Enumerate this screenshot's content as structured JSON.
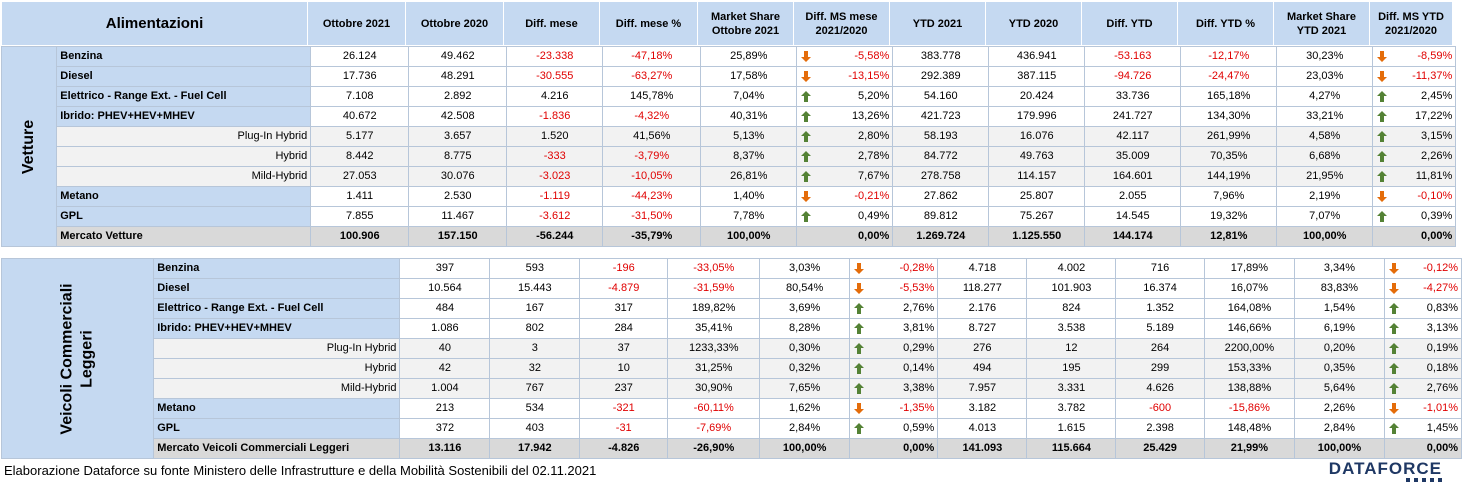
{
  "headers": [
    "Alimentazioni",
    "Ottobre 2021",
    "Ottobre 2020",
    "Diff. mese",
    "Diff. mese %",
    "Market Share Ottobre 2021",
    "Diff. MS mese 2021/2020",
    "YTD 2021",
    "YTD 2020",
    "Diff. YTD",
    "Diff. YTD %",
    "Market Share YTD 2021",
    "Diff. MS YTD 2021/2020"
  ],
  "sections": [
    {
      "group": "Vetture",
      "rows": [
        {
          "label": "Benzina",
          "type": "main",
          "values": [
            "26.124",
            "49.462",
            "-23.338",
            "-47,18%",
            "25,89%",
            "-5,58%",
            "383.778",
            "436.941",
            "-53.163",
            "-12,17%",
            "30,23%",
            "-8,59%"
          ]
        },
        {
          "label": "Diesel",
          "type": "main",
          "values": [
            "17.736",
            "48.291",
            "-30.555",
            "-63,27%",
            "17,58%",
            "-13,15%",
            "292.389",
            "387.115",
            "-94.726",
            "-24,47%",
            "23,03%",
            "-11,37%"
          ]
        },
        {
          "label": "Elettrico - Range Ext. - Fuel Cell",
          "type": "main",
          "values": [
            "7.108",
            "2.892",
            "4.216",
            "145,78%",
            "7,04%",
            "5,20%",
            "54.160",
            "20.424",
            "33.736",
            "165,18%",
            "4,27%",
            "2,45%"
          ]
        },
        {
          "label": "Ibrido: PHEV+HEV+MHEV",
          "type": "main",
          "values": [
            "40.672",
            "42.508",
            "-1.836",
            "-4,32%",
            "40,31%",
            "13,26%",
            "421.723",
            "179.996",
            "241.727",
            "134,30%",
            "33,21%",
            "17,22%"
          ]
        },
        {
          "label": "Plug-In Hybrid",
          "type": "sub",
          "values": [
            "5.177",
            "3.657",
            "1.520",
            "41,56%",
            "5,13%",
            "2,80%",
            "58.193",
            "16.076",
            "42.117",
            "261,99%",
            "4,58%",
            "3,15%"
          ]
        },
        {
          "label": "Hybrid",
          "type": "sub",
          "values": [
            "8.442",
            "8.775",
            "-333",
            "-3,79%",
            "8,37%",
            "2,78%",
            "84.772",
            "49.763",
            "35.009",
            "70,35%",
            "6,68%",
            "2,26%"
          ]
        },
        {
          "label": "Mild-Hybrid",
          "type": "sub",
          "values": [
            "27.053",
            "30.076",
            "-3.023",
            "-10,05%",
            "26,81%",
            "7,67%",
            "278.758",
            "114.157",
            "164.601",
            "144,19%",
            "21,95%",
            "11,81%"
          ]
        },
        {
          "label": "Metano",
          "type": "main",
          "values": [
            "1.411",
            "2.530",
            "-1.119",
            "-44,23%",
            "1,40%",
            "-0,21%",
            "27.862",
            "25.807",
            "2.055",
            "7,96%",
            "2,19%",
            "-0,10%"
          ]
        },
        {
          "label": "GPL",
          "type": "main",
          "values": [
            "7.855",
            "11.467",
            "-3.612",
            "-31,50%",
            "7,78%",
            "0,49%",
            "89.812",
            "75.267",
            "14.545",
            "19,32%",
            "7,07%",
            "0,39%"
          ]
        },
        {
          "label": "Mercato Vetture",
          "type": "total",
          "values": [
            "100.906",
            "157.150",
            "-56.244",
            "-35,79%",
            "100,00%",
            "0,00%",
            "1.269.724",
            "1.125.550",
            "144.174",
            "12,81%",
            "100,00%",
            "0,00%"
          ]
        }
      ]
    },
    {
      "group": "Veicoli Commerciali Leggeri",
      "group_lines": [
        "Veicoli Commerciali",
        "Leggeri"
      ],
      "rows": [
        {
          "label": "Benzina",
          "type": "main",
          "values": [
            "397",
            "593",
            "-196",
            "-33,05%",
            "3,03%",
            "-0,28%",
            "4.718",
            "4.002",
            "716",
            "17,89%",
            "3,34%",
            "-0,12%"
          ]
        },
        {
          "label": "Diesel",
          "type": "main",
          "values": [
            "10.564",
            "15.443",
            "-4.879",
            "-31,59%",
            "80,54%",
            "-5,53%",
            "118.277",
            "101.903",
            "16.374",
            "16,07%",
            "83,83%",
            "-4,27%"
          ]
        },
        {
          "label": "Elettrico - Range Ext. - Fuel Cell",
          "type": "main",
          "values": [
            "484",
            "167",
            "317",
            "189,82%",
            "3,69%",
            "2,76%",
            "2.176",
            "824",
            "1.352",
            "164,08%",
            "1,54%",
            "0,83%"
          ]
        },
        {
          "label": "Ibrido: PHEV+HEV+MHEV",
          "type": "main",
          "values": [
            "1.086",
            "802",
            "284",
            "35,41%",
            "8,28%",
            "3,81%",
            "8.727",
            "3.538",
            "5.189",
            "146,66%",
            "6,19%",
            "3,13%"
          ]
        },
        {
          "label": "Plug-In Hybrid",
          "type": "sub",
          "values": [
            "40",
            "3",
            "37",
            "1233,33%",
            "0,30%",
            "0,29%",
            "276",
            "12",
            "264",
            "2200,00%",
            "0,20%",
            "0,19%"
          ]
        },
        {
          "label": "Hybrid",
          "type": "sub",
          "values": [
            "42",
            "32",
            "10",
            "31,25%",
            "0,32%",
            "0,14%",
            "494",
            "195",
            "299",
            "153,33%",
            "0,35%",
            "0,18%"
          ]
        },
        {
          "label": "Mild-Hybrid",
          "type": "sub",
          "values": [
            "1.004",
            "767",
            "237",
            "30,90%",
            "7,65%",
            "3,38%",
            "7.957",
            "3.331",
            "4.626",
            "138,88%",
            "5,64%",
            "2,76%"
          ]
        },
        {
          "label": "Metano",
          "type": "main",
          "values": [
            "213",
            "534",
            "-321",
            "-60,11%",
            "1,62%",
            "-1,35%",
            "3.182",
            "3.782",
            "-600",
            "-15,86%",
            "2,26%",
            "-1,01%"
          ]
        },
        {
          "label": "GPL",
          "type": "main",
          "values": [
            "372",
            "403",
            "-31",
            "-7,69%",
            "2,84%",
            "0,59%",
            "4.013",
            "1.615",
            "2.398",
            "148,48%",
            "2,84%",
            "1,45%"
          ]
        },
        {
          "label": "Mercato Veicoli Commerciali Leggeri",
          "type": "total",
          "values": [
            "13.116",
            "17.942",
            "-4.826",
            "-26,90%",
            "100,00%",
            "0,00%",
            "141.093",
            "115.664",
            "25.429",
            "21,99%",
            "100,00%",
            "0,00%"
          ]
        }
      ]
    }
  ],
  "colors": {
    "negative": "#e00000",
    "header_bg": "#c5d9f1",
    "arrow_up": "#548235",
    "arrow_down": "#e46c0a"
  },
  "footer": "Elaborazione Dataforce su fonte Ministero delle Infrastrutture e della Mobilità Sostenibili del 02.11.2021",
  "logo": "DATAFORCE"
}
